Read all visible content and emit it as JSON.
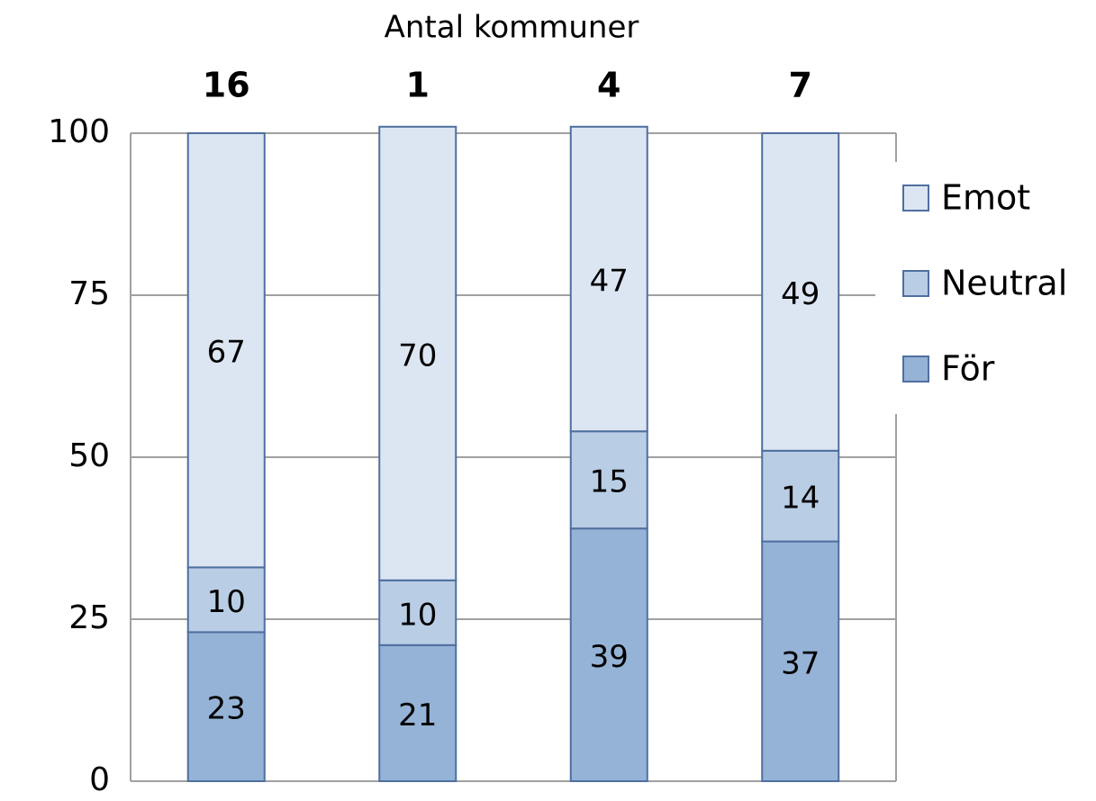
{
  "chart_data": {
    "type": "bar",
    "stacked": true,
    "title": "Antal kommuner",
    "categories": [
      "16",
      "1",
      "4",
      "7"
    ],
    "series": [
      {
        "name": "För",
        "color": "#95b3d7",
        "values": [
          23,
          21,
          39,
          37
        ]
      },
      {
        "name": "Neutral",
        "color": "#b9cde5",
        "values": [
          10,
          10,
          15,
          14
        ]
      },
      {
        "name": "Emot",
        "color": "#dce6f2",
        "values": [
          67,
          70,
          47,
          49
        ]
      }
    ],
    "ylim": [
      0,
      100
    ],
    "yticks": [
      0,
      25,
      50,
      75,
      100
    ],
    "grid": true,
    "legend": "right"
  }
}
